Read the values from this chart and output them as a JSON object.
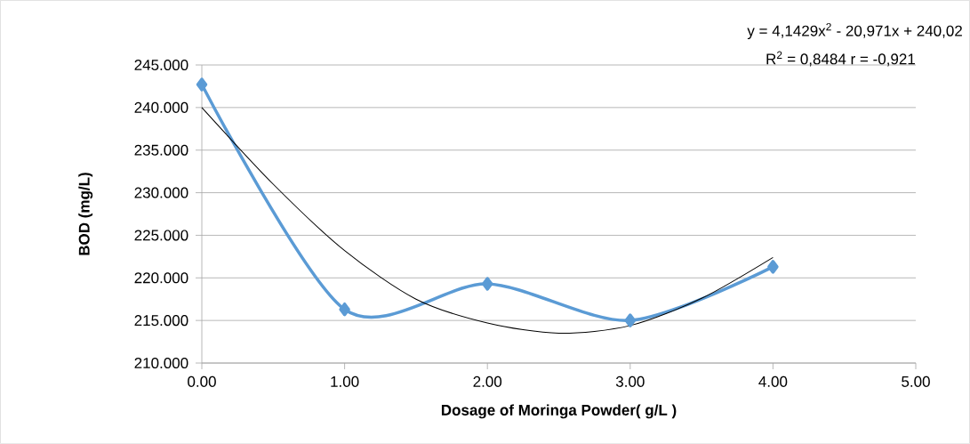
{
  "chart_data": {
    "type": "line",
    "xlabel": "Dosage of Moringa Powder( g/L )",
    "ylabel": "BOD  (mg/L)",
    "series": [
      {
        "color": "#5b9bd5",
        "x": [
          0,
          1,
          2,
          3,
          4
        ],
        "values": [
          242.7,
          216.3,
          219.3,
          215.0,
          221.3
        ],
        "marker": "diamond"
      },
      {
        "color": "#000000",
        "x": [
          0,
          0.5,
          1,
          1.5,
          2,
          2.5,
          3,
          3.5,
          4
        ],
        "values": [
          240.0,
          231.0,
          223.2,
          217.5,
          214.7,
          213.5,
          214.4,
          217.6,
          222.4
        ],
        "marker": "none"
      }
    ],
    "xlim": [
      0,
      5
    ],
    "xticks": [
      {
        "value": 0,
        "label": "0.00"
      },
      {
        "value": 1,
        "label": "1.00"
      },
      {
        "value": 2,
        "label": "2.00"
      },
      {
        "value": 3,
        "label": "3.00"
      },
      {
        "value": 4,
        "label": "4.00"
      },
      {
        "value": 5,
        "label": "5.00"
      }
    ],
    "ylim": [
      210,
      245
    ],
    "yticks": [
      {
        "value": 210,
        "label": "210.000"
      },
      {
        "value": 215,
        "label": "215.000"
      },
      {
        "value": 220,
        "label": "220.000"
      },
      {
        "value": 225,
        "label": "225.000"
      },
      {
        "value": 230,
        "label": "230.000"
      },
      {
        "value": 235,
        "label": "235.000"
      },
      {
        "value": 240,
        "label": "240.000"
      },
      {
        "value": 245,
        "label": "245.000"
      }
    ],
    "grid": "y",
    "line_style": "solid",
    "annotations": [
      "y = 4,1429x$^{2}$ - 20,971x + 240,02",
      "R$^{2}$ = 0,8484 r = -0,921"
    ]
  }
}
